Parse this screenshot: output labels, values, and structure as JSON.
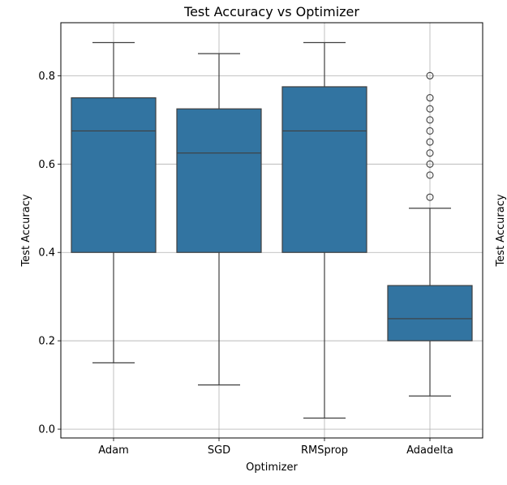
{
  "chart_data": {
    "type": "box",
    "title": "Test Accuracy vs Optimizer",
    "xlabel": "Optimizer",
    "ylabel": "Test Accuracy",
    "ylabel_right": "Test Accuracy",
    "ylim": [
      -0.02,
      0.92
    ],
    "yticks": [
      0.0,
      0.2,
      0.4,
      0.6,
      0.8
    ],
    "ytick_labels": [
      "0.0",
      "0.2",
      "0.4",
      "0.6",
      "0.8"
    ],
    "grid": true,
    "color": "#3274a1",
    "categories": [
      "Adam",
      "SGD",
      "RMSprop",
      "Adadelta"
    ],
    "boxes": [
      {
        "name": "Adam",
        "whisker_low": 0.15,
        "q1": 0.4,
        "median": 0.675,
        "q3": 0.75,
        "whisker_high": 0.875,
        "outliers": []
      },
      {
        "name": "SGD",
        "whisker_low": 0.1,
        "q1": 0.4,
        "median": 0.625,
        "q3": 0.725,
        "whisker_high": 0.85,
        "outliers": []
      },
      {
        "name": "RMSprop",
        "whisker_low": 0.025,
        "q1": 0.4,
        "median": 0.675,
        "q3": 0.775,
        "whisker_high": 0.875,
        "outliers": []
      },
      {
        "name": "Adadelta",
        "whisker_low": 0.075,
        "q1": 0.2,
        "median": 0.25,
        "q3": 0.325,
        "whisker_high": 0.5,
        "outliers": [
          0.525,
          0.575,
          0.6,
          0.625,
          0.65,
          0.675,
          0.7,
          0.725,
          0.75,
          0.8
        ]
      }
    ]
  }
}
